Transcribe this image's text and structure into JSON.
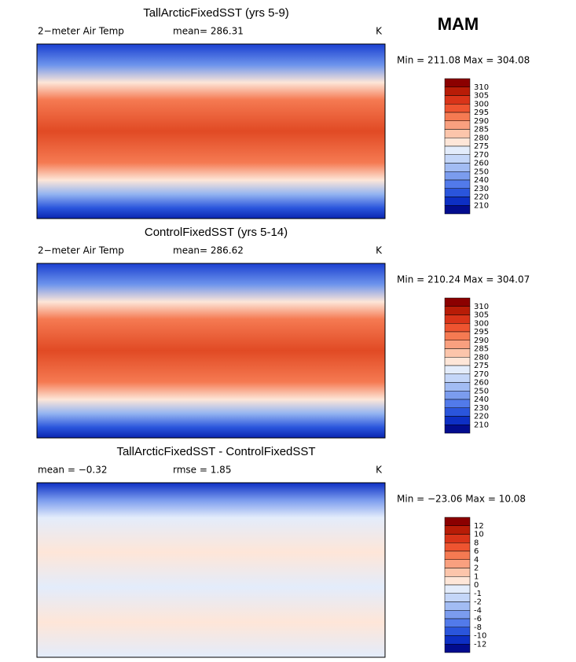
{
  "header": {
    "season": "MAM"
  },
  "panels": [
    {
      "title": "TallArcticFixedSST (yrs 5-9)",
      "left": "2−meter Air Temp",
      "middle": "mean= 286.31",
      "units": "K",
      "range": "Min = 211.08 Max = 304.08",
      "colorbar": {
        "labels": [
          310,
          305,
          300,
          295,
          290,
          285,
          280,
          275,
          270,
          260,
          250,
          240,
          230,
          220,
          210
        ],
        "colors": [
          "#8b0000",
          "#b81c07",
          "#d93419",
          "#ee5430",
          "#f57a52",
          "#f9a07f",
          "#fcc5ab",
          "#fee6d8",
          "#e3ecfb",
          "#c4d6f8",
          "#a2bcf3",
          "#7b9cee",
          "#527aea",
          "#2a55dc",
          "#0d2fc4",
          "#020c8e"
        ]
      }
    },
    {
      "title": "ControlFixedSST (yrs 5-14)",
      "left": "2−meter Air Temp",
      "middle": "mean= 286.62",
      "units": "K",
      "range": "Min = 210.24 Max = 304.07",
      "colorbar": {
        "labels": [
          310,
          305,
          300,
          295,
          290,
          285,
          280,
          275,
          270,
          260,
          250,
          240,
          230,
          220,
          210
        ],
        "colors": [
          "#8b0000",
          "#b81c07",
          "#d93419",
          "#ee5430",
          "#f57a52",
          "#f9a07f",
          "#fcc5ab",
          "#fee6d8",
          "#e3ecfb",
          "#c4d6f8",
          "#a2bcf3",
          "#7b9cee",
          "#527aea",
          "#2a55dc",
          "#0d2fc4",
          "#020c8e"
        ]
      }
    },
    {
      "title": "TallArcticFixedSST - ControlFixedSST",
      "left": "mean =   −0.32",
      "middle": "rmse =    1.85",
      "units": "K",
      "range": "Min = −23.06 Max =  10.08",
      "colorbar": {
        "labels": [
          12,
          10,
          8,
          6,
          4,
          2,
          1,
          0,
          -1,
          -2,
          -4,
          -6,
          -8,
          -10,
          -12
        ],
        "colors": [
          "#8b0000",
          "#b81c07",
          "#d93419",
          "#ee5430",
          "#f57a52",
          "#f9a07f",
          "#fcc5ab",
          "#fee6d8",
          "#e3ecfb",
          "#c4d6f8",
          "#a2bcf3",
          "#7b9cee",
          "#527aea",
          "#2a55dc",
          "#0d2fc4",
          "#020c8e"
        ]
      }
    }
  ]
}
